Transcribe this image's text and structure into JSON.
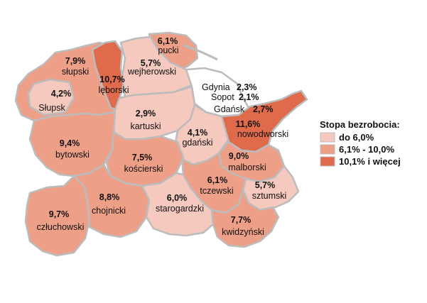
{
  "colors": {
    "low": "#f6c9bf",
    "mid": "#ee9f88",
    "high": "#e06a4c",
    "border": "#bcbcbc",
    "sea": "#ffffff"
  },
  "legend": {
    "title": "Stopa bezrobocia:",
    "items": [
      {
        "label": "do 6,0%",
        "class": "low"
      },
      {
        "label": "6,1% - 10,0%",
        "class": "mid"
      },
      {
        "label": "10,1% i więcej",
        "class": "high"
      }
    ]
  },
  "regions": {
    "slupski": {
      "name": "słupski",
      "value": "7,9%",
      "class": "mid"
    },
    "slupsk": {
      "name": "Słupsk",
      "value": "4,2%",
      "class": "low"
    },
    "leborski": {
      "name": "lęborski",
      "value": "10,7%",
      "class": "high"
    },
    "pucki": {
      "name": "pucki",
      "value": "6,1%",
      "class": "mid"
    },
    "wejherowski": {
      "name": "wejherowski",
      "value": "5,7%",
      "class": "low"
    },
    "kartuski": {
      "name": "kartuski",
      "value": "2,9%",
      "class": "low"
    },
    "gdanski": {
      "name": "gdański",
      "value": "4,1%",
      "class": "low"
    },
    "nowodworski": {
      "name": "nowodworski",
      "value": "11,6%",
      "class": "high"
    },
    "bytowski": {
      "name": "bytowski",
      "value": "9,4%",
      "class": "mid"
    },
    "koscierski": {
      "name": "kościerski",
      "value": "7,5%",
      "class": "mid"
    },
    "malborski": {
      "name": "malborski",
      "value": "9,0%",
      "class": "mid"
    },
    "tczewski": {
      "name": "tczewski",
      "value": "6,1%",
      "class": "mid"
    },
    "sztumski": {
      "name": "sztumski",
      "value": "5,7%",
      "class": "low"
    },
    "chojnicki": {
      "name": "chojnicki",
      "value": "8,8%",
      "class": "mid"
    },
    "starogardzki": {
      "name": "starogardzki",
      "value": "6,0%",
      "class": "low"
    },
    "czluchowski": {
      "name": "człuchowski",
      "value": "9,7%",
      "class": "mid"
    },
    "kwidzynski": {
      "name": "kwidzyński",
      "value": "7,7%",
      "class": "mid"
    }
  },
  "cities": [
    {
      "name": "Gdynia",
      "value": "2,3%"
    },
    {
      "name": "Sopot",
      "value": "2,1%"
    },
    {
      "name": "Gdańsk",
      "value": "2,7%"
    }
  ]
}
